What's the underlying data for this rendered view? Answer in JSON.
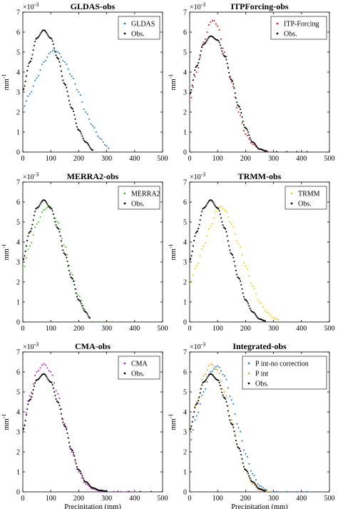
{
  "figure": {
    "common_xlabel": "Precipitation (mm)",
    "common_ylabel": "mm",
    "ylabel_exponent": "-1",
    "scale_base": "×10",
    "scale_power": "-3"
  },
  "chart_data": [
    {
      "type": "scatter",
      "title": "GLDAS-obs",
      "xlabel": "",
      "ylabel": "mm-1",
      "xlim": [
        0,
        500
      ],
      "ylim": [
        0,
        7
      ],
      "y_scale_note": "×10^-3",
      "x_ticks": [
        "0",
        "100",
        "200",
        "300",
        "400",
        "500"
      ],
      "y_ticks": [
        "0",
        "1",
        "2",
        "3",
        "4",
        "5",
        "6",
        "7"
      ],
      "legend_position": "top-right",
      "grid": false,
      "series": [
        {
          "name": "GLDAS",
          "color": "#1f7fbf",
          "x_range": [
            0,
            310
          ],
          "x": [
            0,
            25,
            50,
            75,
            100,
            110,
            125,
            150,
            175,
            200,
            225,
            250,
            275,
            300,
            310
          ],
          "y": [
            2.2,
            2.9,
            3.7,
            4.5,
            5.0,
            5.1,
            5.0,
            4.5,
            3.8,
            3.0,
            2.0,
            1.3,
            0.7,
            0.3,
            0.15
          ]
        },
        {
          "name": "Obs.",
          "color": "#000000",
          "x_range": [
            0,
            250
          ],
          "x": [
            0,
            25,
            50,
            75,
            100,
            125,
            150,
            175,
            200,
            225,
            250
          ],
          "y": [
            3.1,
            4.5,
            5.7,
            6.1,
            5.7,
            4.7,
            3.4,
            2.2,
            1.1,
            0.5,
            0.1
          ]
        }
      ]
    },
    {
      "type": "scatter",
      "title": "ITPForcing-obs",
      "xlabel": "",
      "ylabel": "mm-1",
      "xlim": [
        0,
        500
      ],
      "ylim": [
        0,
        7
      ],
      "y_scale_note": "×10^-3",
      "x_ticks": [
        "0",
        "100",
        "200",
        "300",
        "400",
        "500"
      ],
      "y_ticks": [
        "0",
        "1",
        "2",
        "3",
        "4",
        "5",
        "6",
        "7"
      ],
      "legend_position": "top-right",
      "grid": false,
      "series": [
        {
          "name": "ITP-Forcing",
          "color": "#d42020",
          "x_range": [
            0,
            280
          ],
          "x": [
            0,
            25,
            50,
            75,
            85,
            100,
            125,
            150,
            175,
            200,
            225,
            250,
            275
          ],
          "y": [
            2.5,
            4.0,
            5.5,
            6.5,
            6.6,
            6.3,
            5.0,
            3.5,
            2.0,
            0.9,
            0.4,
            0.15,
            0.05
          ]
        },
        {
          "name": "Obs.",
          "color": "#000000",
          "x_range": [
            0,
            420
          ],
          "x": [
            0,
            25,
            50,
            75,
            100,
            125,
            150,
            175,
            200,
            225,
            250,
            275
          ],
          "y": [
            2.9,
            4.3,
            5.4,
            5.8,
            5.6,
            4.8,
            3.6,
            2.3,
            1.2,
            0.5,
            0.15,
            0.05
          ]
        }
      ]
    },
    {
      "type": "scatter",
      "title": "MERRA2-obs",
      "xlabel": "",
      "ylabel": "mm-1",
      "xlim": [
        0,
        500
      ],
      "ylim": [
        0,
        7
      ],
      "y_scale_note": "×10^-3",
      "x_ticks": [
        "0",
        "100",
        "200",
        "300",
        "400",
        "500"
      ],
      "y_ticks": [
        "0",
        "1",
        "2",
        "3",
        "4",
        "5",
        "6",
        "7"
      ],
      "legend_position": "top-right",
      "grid": false,
      "series": [
        {
          "name": "MERRA2",
          "color": "#4cc42a",
          "x_range": [
            0,
            320
          ],
          "x": [
            0,
            25,
            50,
            75,
            95,
            125,
            150,
            175,
            200,
            225
          ],
          "y": [
            2.6,
            3.8,
            4.9,
            5.6,
            5.8,
            5.0,
            3.8,
            2.4,
            1.3,
            0.6
          ]
        },
        {
          "name": "Obs.",
          "color": "#000000",
          "x_range": [
            0,
            240
          ],
          "x": [
            0,
            25,
            50,
            75,
            100,
            125,
            150,
            175,
            200,
            225,
            240
          ],
          "y": [
            3.1,
            4.5,
            5.7,
            6.1,
            5.7,
            4.7,
            3.4,
            2.2,
            1.1,
            0.5,
            0.2
          ]
        }
      ]
    },
    {
      "type": "scatter",
      "title": "TRMM-obs",
      "xlabel": "",
      "ylabel": "mm-1",
      "xlim": [
        0,
        500
      ],
      "ylim": [
        0,
        7
      ],
      "y_scale_note": "×10^-3",
      "x_ticks": [
        "0",
        "100",
        "200",
        "300",
        "400",
        "500"
      ],
      "y_ticks": [
        "0",
        "1",
        "2",
        "3",
        "4",
        "5",
        "6",
        "7"
      ],
      "legend_position": "top-right",
      "grid": false,
      "series": [
        {
          "name": "TRMM",
          "color": "#f2cc1a",
          "x_range": [
            0,
            320
          ],
          "x": [
            0,
            25,
            50,
            75,
            100,
            110,
            125,
            150,
            175,
            200,
            225,
            250,
            275,
            300,
            320
          ],
          "y": [
            1.9,
            2.8,
            3.8,
            4.8,
            5.6,
            5.8,
            5.6,
            4.9,
            3.9,
            2.8,
            1.8,
            1.0,
            0.5,
            0.2,
            0.1
          ]
        },
        {
          "name": "Obs.",
          "color": "#000000",
          "x_range": [
            0,
            270
          ],
          "x": [
            0,
            25,
            50,
            75,
            100,
            125,
            150,
            175,
            200,
            225,
            250,
            270
          ],
          "y": [
            3.1,
            4.5,
            5.7,
            6.1,
            5.7,
            4.7,
            3.4,
            2.2,
            1.1,
            0.5,
            0.15,
            0.05
          ]
        }
      ]
    },
    {
      "type": "scatter",
      "title": "CMA-obs",
      "xlabel": "Precipitation (mm)",
      "ylabel": "mm-1",
      "xlim": [
        0,
        500
      ],
      "ylim": [
        0,
        7
      ],
      "y_scale_note": "×10^-3",
      "x_ticks": [
        "0",
        "100",
        "200",
        "300",
        "400",
        "500"
      ],
      "y_ticks": [
        "0",
        "1",
        "2",
        "3",
        "4",
        "5",
        "6",
        "7"
      ],
      "legend_position": "top-right",
      "grid": false,
      "series": [
        {
          "name": "CMA",
          "color": "#c81ec8",
          "x_range": [
            0,
            400
          ],
          "x": [
            0,
            25,
            50,
            75,
            100,
            125,
            150,
            175,
            200,
            225,
            250,
            275,
            300
          ],
          "y": [
            3.1,
            4.8,
            6.0,
            6.4,
            6.0,
            4.9,
            3.4,
            2.0,
            1.0,
            0.4,
            0.15,
            0.05,
            0.02
          ]
        },
        {
          "name": "Obs.",
          "color": "#000000",
          "x_range": [
            0,
            460
          ],
          "x": [
            0,
            25,
            50,
            75,
            100,
            125,
            150,
            175,
            200,
            225,
            250,
            275,
            300
          ],
          "y": [
            3.1,
            4.6,
            5.6,
            5.9,
            5.5,
            4.5,
            3.3,
            2.1,
            1.1,
            0.5,
            0.2,
            0.08,
            0.03
          ]
        }
      ]
    },
    {
      "type": "scatter",
      "title": "Integrated-obs",
      "xlabel": "Precipitation (mm)",
      "ylabel": "mm-1",
      "xlim": [
        0,
        500
      ],
      "ylim": [
        0,
        7
      ],
      "y_scale_note": "×10^-3",
      "x_ticks": [
        "0",
        "100",
        "200",
        "300",
        "400",
        "500"
      ],
      "y_ticks": [
        "0",
        "1",
        "2",
        "3",
        "4",
        "5",
        "6",
        "7"
      ],
      "legend_position": "top-right",
      "grid": false,
      "series": [
        {
          "name": "P int-no correction",
          "color": "#1f7fbf",
          "x_range": [
            0,
            420
          ],
          "x": [
            0,
            25,
            50,
            75,
            100,
            125,
            150,
            175,
            200,
            225,
            250,
            275
          ],
          "y": [
            2.4,
            3.8,
            5.0,
            6.0,
            6.3,
            5.8,
            4.6,
            3.2,
            1.9,
            0.9,
            0.3,
            0.1
          ]
        },
        {
          "name": "P int",
          "color": "#f0a030",
          "x_range": [
            0,
            280
          ],
          "x": [
            0,
            25,
            50,
            75,
            100,
            125,
            150,
            175,
            200,
            225,
            250,
            275
          ],
          "y": [
            3.0,
            4.5,
            5.8,
            6.4,
            6.1,
            5.0,
            3.6,
            2.2,
            1.1,
            0.4,
            0.1,
            0.03
          ]
        },
        {
          "name": "Obs.",
          "color": "#000000",
          "x_range": [
            0,
            270
          ],
          "x": [
            0,
            25,
            50,
            75,
            100,
            125,
            150,
            175,
            200,
            225,
            250,
            270
          ],
          "y": [
            3.1,
            4.4,
            5.5,
            5.9,
            5.6,
            4.7,
            3.4,
            2.2,
            1.1,
            0.5,
            0.15,
            0.05
          ]
        }
      ]
    }
  ]
}
